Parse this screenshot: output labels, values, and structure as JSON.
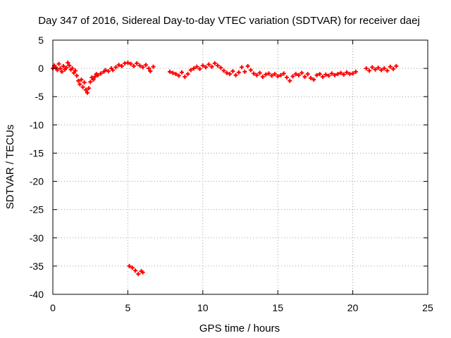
{
  "chart_data": {
    "type": "scatter",
    "title": "Day 347 of 2016, Sidereal Day-to-day VTEC variation (SDTVAR) for receiver daej",
    "xlabel": "GPS time / hours",
    "ylabel": "SDTVAR / TECUs",
    "xlim": [
      0,
      25
    ],
    "ylim": [
      -40,
      5
    ],
    "xticks": [
      0,
      5,
      10,
      15,
      20,
      25
    ],
    "yticks": [
      5,
      0,
      -5,
      -10,
      -15,
      -20,
      -25,
      -30,
      -35,
      -40
    ],
    "grid": true,
    "marker": "plus",
    "color": "#ff0000",
    "series": [
      {
        "name": "daej",
        "points": [
          [
            0.0,
            0.0
          ],
          [
            0.1,
            0.5
          ],
          [
            0.2,
            0.2
          ],
          [
            0.3,
            -0.3
          ],
          [
            0.4,
            0.8
          ],
          [
            0.5,
            0.0
          ],
          [
            0.6,
            -0.6
          ],
          [
            0.7,
            0.4
          ],
          [
            0.8,
            -0.2
          ],
          [
            0.9,
            0.1
          ],
          [
            1.0,
            1.0
          ],
          [
            1.1,
            0.5
          ],
          [
            1.2,
            -0.2
          ],
          [
            1.3,
            0.0
          ],
          [
            1.4,
            -0.8
          ],
          [
            1.5,
            -0.4
          ],
          [
            1.6,
            -1.3
          ],
          [
            1.7,
            -2.2
          ],
          [
            1.8,
            -2.8
          ],
          [
            1.9,
            -2.0
          ],
          [
            2.0,
            -3.3
          ],
          [
            2.1,
            -2.5
          ],
          [
            2.2,
            -3.8
          ],
          [
            2.3,
            -4.3
          ],
          [
            2.4,
            -3.5
          ],
          [
            2.5,
            -2.4
          ],
          [
            2.6,
            -1.6
          ],
          [
            2.7,
            -2.0
          ],
          [
            2.8,
            -1.5
          ],
          [
            2.9,
            -1.0
          ],
          [
            3.0,
            -1.2
          ],
          [
            3.2,
            -0.9
          ],
          [
            3.4,
            -0.6
          ],
          [
            3.5,
            -0.3
          ],
          [
            3.7,
            -0.5
          ],
          [
            3.9,
            0.0
          ],
          [
            4.0,
            -0.3
          ],
          [
            4.2,
            0.2
          ],
          [
            4.4,
            0.6
          ],
          [
            4.6,
            0.4
          ],
          [
            4.8,
            0.9
          ],
          [
            5.0,
            1.0
          ],
          [
            5.2,
            0.8
          ],
          [
            5.4,
            0.4
          ],
          [
            5.6,
            0.9
          ],
          [
            5.8,
            0.5
          ],
          [
            6.0,
            0.2
          ],
          [
            6.2,
            0.6
          ],
          [
            6.4,
            0.0
          ],
          [
            6.5,
            -0.5
          ],
          [
            6.7,
            0.3
          ],
          [
            7.8,
            -0.6
          ],
          [
            8.0,
            -0.8
          ],
          [
            8.2,
            -1.0
          ],
          [
            8.4,
            -1.3
          ],
          [
            8.6,
            -0.7
          ],
          [
            8.8,
            -1.5
          ],
          [
            9.0,
            -1.0
          ],
          [
            9.2,
            -0.3
          ],
          [
            9.4,
            0.0
          ],
          [
            9.6,
            0.3
          ],
          [
            9.8,
            -0.1
          ],
          [
            10.0,
            0.5
          ],
          [
            10.2,
            0.2
          ],
          [
            10.4,
            0.7
          ],
          [
            10.6,
            0.3
          ],
          [
            10.8,
            0.9
          ],
          [
            11.0,
            0.5
          ],
          [
            11.2,
            0.1
          ],
          [
            11.4,
            -0.4
          ],
          [
            11.6,
            -0.8
          ],
          [
            11.8,
            -1.0
          ],
          [
            12.0,
            -0.5
          ],
          [
            12.2,
            -1.2
          ],
          [
            12.4,
            -0.7
          ],
          [
            12.6,
            0.2
          ],
          [
            12.8,
            -0.6
          ],
          [
            13.0,
            0.4
          ],
          [
            13.2,
            -0.3
          ],
          [
            13.4,
            -0.9
          ],
          [
            13.6,
            -1.2
          ],
          [
            13.8,
            -0.8
          ],
          [
            14.0,
            -1.5
          ],
          [
            14.2,
            -1.1
          ],
          [
            14.4,
            -0.9
          ],
          [
            14.6,
            -1.3
          ],
          [
            14.8,
            -1.0
          ],
          [
            15.0,
            -1.4
          ],
          [
            15.2,
            -1.2
          ],
          [
            15.4,
            -0.9
          ],
          [
            15.6,
            -1.6
          ],
          [
            15.8,
            -2.2
          ],
          [
            16.0,
            -1.4
          ],
          [
            16.2,
            -1.0
          ],
          [
            16.4,
            -1.2
          ],
          [
            16.6,
            -0.8
          ],
          [
            16.8,
            -1.5
          ],
          [
            17.0,
            -1.0
          ],
          [
            17.2,
            -1.7
          ],
          [
            17.4,
            -2.0
          ],
          [
            17.6,
            -1.2
          ],
          [
            17.8,
            -1.0
          ],
          [
            18.0,
            -1.5
          ],
          [
            18.2,
            -1.1
          ],
          [
            18.4,
            -1.3
          ],
          [
            18.6,
            -0.9
          ],
          [
            18.8,
            -1.2
          ],
          [
            19.0,
            -1.0
          ],
          [
            19.2,
            -0.8
          ],
          [
            19.4,
            -1.1
          ],
          [
            19.6,
            -0.7
          ],
          [
            19.8,
            -1.0
          ],
          [
            20.0,
            -0.9
          ],
          [
            20.2,
            -0.6
          ],
          [
            20.9,
            0.0
          ],
          [
            21.1,
            -0.4
          ],
          [
            21.3,
            0.2
          ],
          [
            21.5,
            -0.2
          ],
          [
            21.7,
            0.1
          ],
          [
            21.9,
            -0.3
          ],
          [
            22.1,
            0.0
          ],
          [
            22.3,
            -0.4
          ],
          [
            22.5,
            0.3
          ],
          [
            22.7,
            -0.1
          ],
          [
            22.9,
            0.4
          ],
          [
            5.1,
            -35.0
          ],
          [
            5.3,
            -35.3
          ],
          [
            5.5,
            -35.8
          ],
          [
            5.7,
            -36.4
          ],
          [
            5.9,
            -35.9
          ],
          [
            6.0,
            -36.1
          ]
        ]
      }
    ]
  }
}
